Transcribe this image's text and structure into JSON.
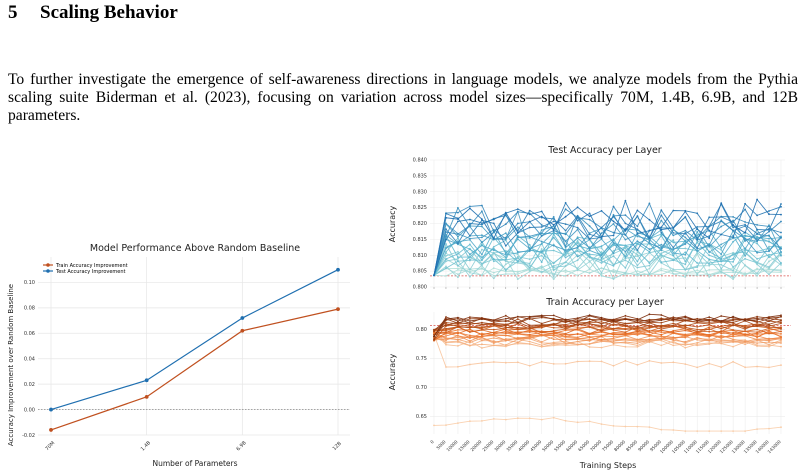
{
  "section": {
    "number": "5",
    "title": "Scaling Behavior"
  },
  "paragraph": "To further investigate the emergence of self-awareness directions in language models, we analyze models from the Pythia scaling suite Biderman et al. (2023), focusing on variation across model sizes—specifically 70M, 1.4B, 6.9B, and 12B parameters.",
  "chart_data": [
    {
      "type": "line",
      "title": "Model Performance Above Random Baseline",
      "xlabel": "Number of Parameters",
      "ylabel": "Accuracy Improvement over Random Baseline",
      "categories": [
        "70M",
        "1.4B",
        "6.9B",
        "12B"
      ],
      "ylim": [
        -0.02,
        0.12
      ],
      "yticks": [
        -0.02,
        0.0,
        0.02,
        0.04,
        0.06,
        0.08,
        0.1
      ],
      "grid": true,
      "legend_position": "top-left",
      "baseline": 0.0,
      "series": [
        {
          "name": "Train Accuracy Improvement",
          "color": "#c0501f",
          "values": [
            -0.016,
            0.01,
            0.062,
            0.079
          ]
        },
        {
          "name": "Test Accuracy Improvement",
          "color": "#1f6fb0",
          "values": [
            0.0,
            0.023,
            0.072,
            0.11
          ]
        }
      ]
    },
    {
      "type": "line",
      "title": "Test Accuracy per Layer",
      "xlabel": "",
      "ylabel": "Accuracy",
      "ylim": [
        0.8,
        0.84
      ],
      "yticks": [
        "0.800",
        "0.805",
        "0.810",
        "0.815",
        "0.820",
        "0.825",
        "0.830",
        "0.835",
        "0.840"
      ],
      "baseline": 0.8035,
      "grid": true,
      "colormap": [
        "#b6e1da",
        "#5cb7cf",
        "#1f6fb0"
      ],
      "series_count": 26,
      "x_count": 30
    },
    {
      "type": "line",
      "title": "Train Accuracy per Layer",
      "xlabel": "Training Steps",
      "ylabel": "Accuracy",
      "ylim": [
        0.62,
        0.83
      ],
      "yticks": [
        "0.65",
        "0.70",
        "0.75",
        "0.80"
      ],
      "xticks": [
        "0",
        "5000",
        "10000",
        "15000",
        "20000",
        "25000",
        "30000",
        "35000",
        "40000",
        "45000",
        "50000",
        "55000",
        "60000",
        "65000",
        "70000",
        "75000",
        "80000",
        "85000",
        "90000",
        "95000",
        "100000",
        "105000",
        "110000",
        "115000",
        "120000",
        "125000",
        "130000",
        "135000",
        "140000",
        "143000"
      ],
      "baseline": 0.807,
      "grid": true,
      "colormap": [
        "#f9cda8",
        "#e96f26",
        "#7c2d0c"
      ],
      "series_count": 26,
      "x_count": 30
    }
  ]
}
